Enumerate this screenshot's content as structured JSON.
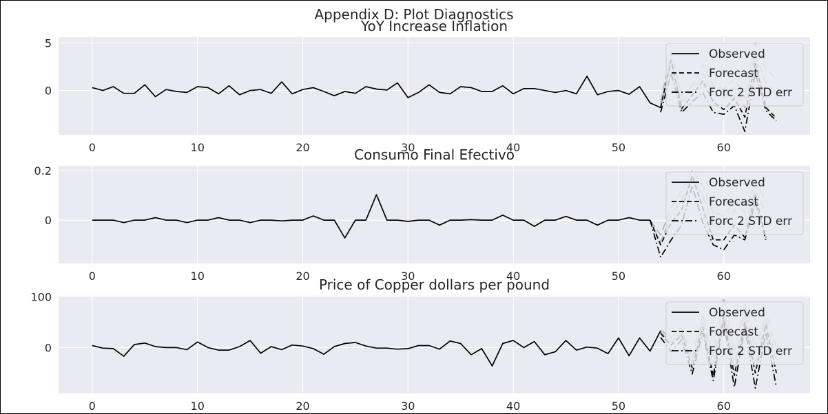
{
  "figure": {
    "title": "Appendix D: Plot Diagnostics"
  },
  "colors": {
    "axes_bg": "#eaeaf2",
    "grid": "#ffffff",
    "line": "#000000",
    "ci": "#b4b4b4",
    "text": "#262626"
  },
  "legend": {
    "placement": "upper right",
    "entries": [
      "Observed",
      "Forecast",
      "Forc 2 STD err"
    ]
  },
  "chart_data": [
    {
      "type": "line",
      "title": "YoY Increase Inflation",
      "xlim": [
        -3.2,
        68.2
      ],
      "ylim": [
        -4.65,
        5.6
      ],
      "xticks": [
        0,
        10,
        20,
        30,
        40,
        50,
        60
      ],
      "yticks": [
        5,
        0
      ],
      "grid": true,
      "series": [
        {
          "name": "Observed",
          "style": "solid",
          "x_start": 0,
          "values": [
            0.3,
            0.0,
            0.4,
            -0.3,
            -0.3,
            0.6,
            -0.65,
            0.1,
            -0.1,
            -0.2,
            0.4,
            0.3,
            -0.35,
            0.5,
            -0.45,
            0.0,
            0.1,
            -0.3,
            0.9,
            -0.35,
            0.1,
            0.3,
            -0.1,
            -0.55,
            -0.1,
            -0.3,
            0.4,
            0.15,
            0.05,
            0.8,
            -0.75,
            -0.2,
            0.6,
            -0.2,
            -0.35,
            0.4,
            0.3,
            -0.1,
            -0.1,
            0.5,
            -0.35,
            0.2,
            0.2,
            0.0,
            -0.2,
            0.0,
            -0.35,
            1.5,
            -0.45,
            -0.1,
            0.0,
            -0.4,
            0.4,
            -1.3,
            -1.8
          ]
        },
        {
          "name": "Forecast",
          "style": "dashed",
          "x_start": 54,
          "values": [
            -1.8,
            3.2,
            -1.9,
            -0.5,
            1.0,
            -1.2,
            -2.0,
            -0.8,
            -2.8,
            3.0,
            -1.8,
            -2.9
          ]
        },
        {
          "name": "Forc 2 STD err",
          "style": "dashdot",
          "x_start": 54,
          "values": [
            -2.3,
            1.8,
            -2.3,
            -1.2,
            -0.2,
            -2.3,
            -2.5,
            -1.6,
            -4.3,
            1.9,
            -2.1,
            -3.2
          ]
        },
        {
          "name": "",
          "style": "ci",
          "x_start": 54,
          "values": [
            -1.2,
            4.0,
            -0.5,
            0.5,
            2.8,
            0.5,
            0.2,
            1.2,
            -0.8,
            5.0,
            2.3,
            1.2
          ]
        },
        {
          "name": "",
          "style": "ci",
          "x_start": 54,
          "values": [
            -1.7,
            2.8,
            -1.2,
            0.0,
            1.8,
            -0.4,
            -0.8,
            0.3,
            -1.8,
            3.8,
            0.8,
            -0.2
          ]
        }
      ]
    },
    {
      "type": "line",
      "title": "Consumo Final Efectivo",
      "xlim": [
        -3.2,
        68.2
      ],
      "ylim": [
        -0.175,
        0.22
      ],
      "xticks": [
        0,
        10,
        20,
        30,
        40,
        50,
        60
      ],
      "yticks": [
        0.2,
        0.0
      ],
      "grid": true,
      "series": [
        {
          "name": "Observed",
          "style": "solid",
          "x_start": 0,
          "values": [
            0.0,
            0.0,
            0.0,
            -0.01,
            0.0,
            0.0,
            0.01,
            0.0,
            0.0,
            -0.01,
            0.0,
            0.0,
            0.01,
            0.0,
            0.0,
            -0.01,
            0.0,
            0.0,
            -0.003,
            0.0,
            0.0,
            0.017,
            0.0,
            0.0,
            -0.072,
            0.0,
            0.0,
            0.103,
            0.0,
            0.0,
            -0.005,
            0.0,
            0.0,
            -0.02,
            0.0,
            0.0,
            0.002,
            0.0,
            0.0,
            0.02,
            0.0,
            0.0,
            -0.025,
            0.0,
            0.0,
            0.015,
            0.0,
            0.0,
            -0.02,
            0.0,
            0.0,
            0.01,
            0.0,
            0.0
          ]
        },
        {
          "name": "Forecast",
          "style": "dashed",
          "x_start": 53,
          "values": [
            0.0,
            -0.1,
            -0.01,
            0.04,
            0.18,
            0.05,
            -0.08,
            -0.08,
            -0.02,
            -0.07,
            0.1,
            -0.07
          ]
        },
        {
          "name": "Forc 2 STD err",
          "style": "dashdot",
          "x_start": 53,
          "values": [
            0.0,
            -0.15,
            -0.08,
            -0.02,
            0.14,
            -0.01,
            -0.1,
            -0.12,
            -0.06,
            -0.08,
            0.07,
            -0.08
          ]
        },
        {
          "name": "",
          "style": "ci",
          "x_start": 53,
          "values": [
            0.0,
            -0.06,
            0.05,
            0.12,
            0.2,
            0.14,
            0.03,
            0.02,
            0.08,
            0.03,
            0.15,
            0.08
          ]
        },
        {
          "name": "",
          "style": "ci",
          "x_start": 53,
          "values": [
            0.0,
            -0.09,
            0.02,
            0.08,
            0.17,
            0.1,
            -0.02,
            -0.03,
            0.04,
            -0.02,
            0.12,
            0.03
          ]
        }
      ]
    },
    {
      "type": "line",
      "title": "Price of Copper dollars per pound",
      "xlim": [
        -3.2,
        68.2
      ],
      "ylim": [
        -90,
        102
      ],
      "xticks": [
        0,
        10,
        20,
        30,
        40,
        50,
        60
      ],
      "yticks": [
        100,
        0
      ],
      "grid": true,
      "series": [
        {
          "name": "Observed",
          "style": "solid",
          "x_start": 0,
          "values": [
            4,
            -1,
            -2,
            -17,
            6,
            9,
            2,
            0,
            0,
            -4,
            11,
            0,
            -5,
            -5,
            2,
            14,
            -11,
            2,
            -4,
            5,
            3,
            -2,
            -13,
            2,
            8,
            10,
            3,
            -1,
            -1,
            -3,
            -2,
            4,
            4,
            -3,
            13,
            8,
            -14,
            -2,
            -36,
            8,
            14,
            0,
            12,
            -14,
            -8,
            14,
            -5,
            1,
            -1,
            -12,
            19,
            -16,
            19,
            -7,
            33
          ]
        },
        {
          "name": "Forecast",
          "style": "dashed",
          "x_start": 54,
          "values": [
            28,
            5,
            25,
            -40,
            40,
            -55,
            60,
            -55,
            50,
            -50,
            45,
            -50
          ]
        },
        {
          "name": "Forc 2 STD err",
          "style": "dashdot",
          "x_start": 54,
          "values": [
            20,
            -8,
            15,
            -52,
            30,
            -65,
            50,
            -78,
            40,
            -80,
            30,
            -78
          ]
        },
        {
          "name": "",
          "style": "ci",
          "x_start": 54,
          "values": [
            34,
            20,
            38,
            -20,
            65,
            -15,
            95,
            -10,
            85,
            -5,
            70,
            0
          ]
        },
        {
          "name": "",
          "style": "ci",
          "x_start": 54,
          "values": [
            30,
            10,
            30,
            -30,
            52,
            -35,
            75,
            -35,
            65,
            -30,
            55,
            -25
          ]
        }
      ]
    }
  ]
}
